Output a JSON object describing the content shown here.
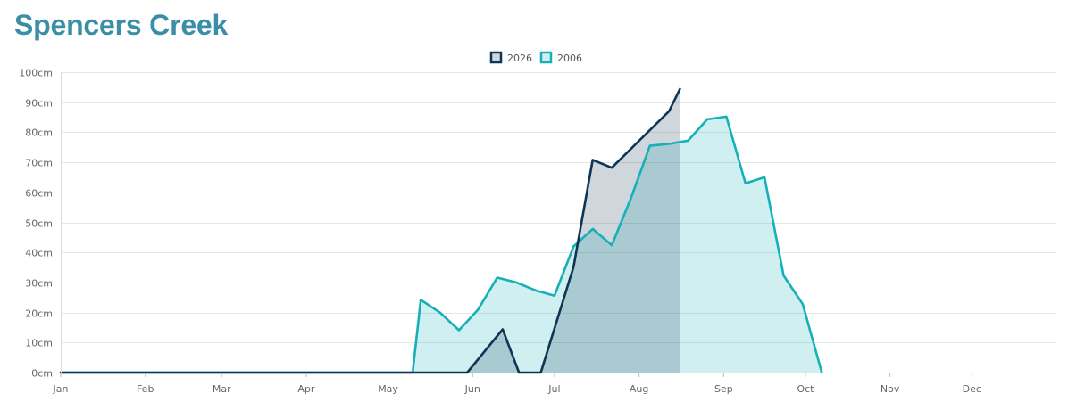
{
  "page": {
    "title": "Spencers Creek",
    "title_color": "#3a8ea6"
  },
  "chart_data": {
    "type": "area",
    "title": "Spencers Creek",
    "xlabel": "",
    "ylabel": "",
    "x_tick_labels": [
      "Jan",
      "Feb",
      "Mar",
      "Apr",
      "May",
      "Jun",
      "Jul",
      "Aug",
      "Sep",
      "Oct",
      "Nov",
      "Dec"
    ],
    "y_tick_labels": [
      "0cm",
      "10cm",
      "20cm",
      "30cm",
      "40cm",
      "50cm",
      "60cm",
      "70cm",
      "80cm",
      "90cm",
      "100cm"
    ],
    "ylim": [
      0,
      100
    ],
    "y_unit": "cm",
    "grid": true,
    "legend_position": "top-center",
    "series": [
      {
        "name": "2026",
        "color": "#0f3554",
        "fill": "rgba(15,53,84,0.2)",
        "x": [
          "01-01",
          "05-30",
          "06-12",
          "06-18",
          "06-26",
          "07-08",
          "07-15",
          "07-22",
          "08-12",
          "08-16"
        ],
        "y": [
          0,
          0,
          14.4,
          0,
          0,
          35.2,
          70.8,
          68.2,
          87.0,
          94.4
        ]
      },
      {
        "name": "2006",
        "color": "#16b0b8",
        "fill": "rgba(22,176,184,0.2)",
        "x": [
          "01-01",
          "05-10",
          "05-13",
          "05-20",
          "05-27",
          "06-03",
          "06-10",
          "06-17",
          "06-24",
          "07-01",
          "07-08",
          "07-15",
          "07-22",
          "07-29",
          "08-05",
          "08-12",
          "08-19",
          "08-26",
          "09-02",
          "09-09",
          "09-16",
          "09-23",
          "09-30",
          "10-07"
        ],
        "y": [
          0,
          0,
          24.2,
          20.0,
          14.1,
          21.0,
          31.6,
          30.0,
          27.4,
          25.6,
          42.0,
          47.8,
          42.4,
          58.0,
          75.5,
          76.1,
          77.2,
          84.3,
          85.2,
          63.0,
          65.0,
          32.3,
          22.8,
          0
        ]
      }
    ]
  }
}
